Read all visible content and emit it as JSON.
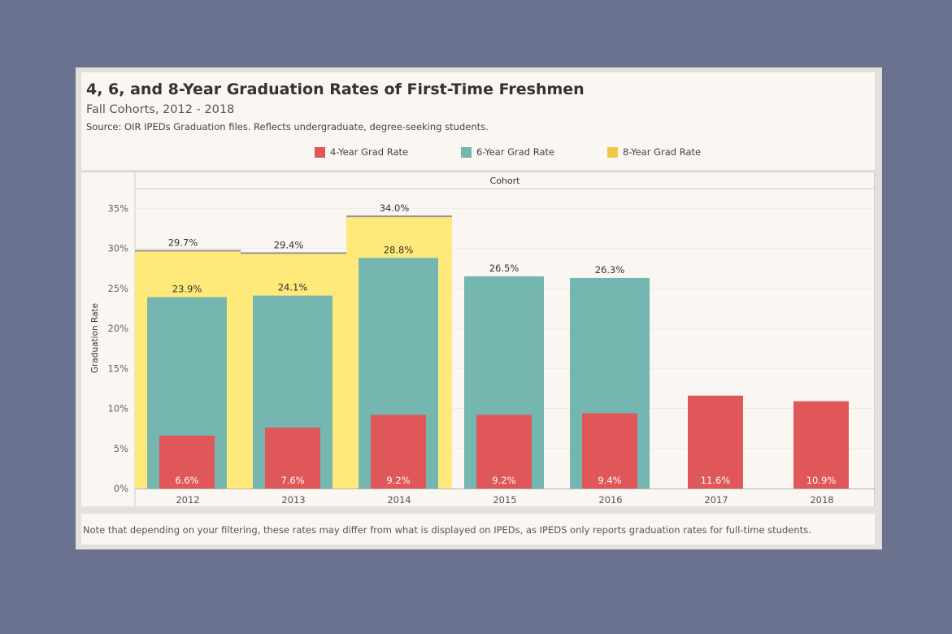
{
  "header": {
    "title": "4, 6, and 8-Year Graduation Rates of First-Time Freshmen",
    "subtitle": "Fall Cohorts, 2012 - 2018",
    "source": "Source: OIR IPEDs Graduation files. Reflects undergraduate, degree-seeking students."
  },
  "legend": [
    {
      "label": "4-Year Grad Rate",
      "color": "#e05759"
    },
    {
      "label": "6-Year Grad Rate",
      "color": "#76b6b0"
    },
    {
      "label": "8-Year Grad Rate",
      "color": "#efc945"
    }
  ],
  "footer": {
    "note": "Note that depending on your filtering, these rates may differ from what is displayed on IPEDs, as IPEDS only reports graduation rates for full-time students."
  },
  "chart_data": {
    "type": "bar",
    "title": "4, 6, and 8-Year Graduation Rates of First-Time Freshmen",
    "subtitle": "Fall Cohorts, 2012 - 2018",
    "column_header": "Cohort",
    "ylabel": "Graduation Rate",
    "ylim": [
      0,
      36
    ],
    "yticks": [
      "0%",
      "5%",
      "10%",
      "15%",
      "20%",
      "25%",
      "30%",
      "35%"
    ],
    "categories": [
      "2012",
      "2013",
      "2014",
      "2015",
      "2016",
      "2017",
      "2018"
    ],
    "series": [
      {
        "name": "8-Year Grad Rate",
        "color": "#ffe97a",
        "line_color": "#9a9490",
        "values": [
          29.7,
          29.4,
          34.0,
          null,
          null,
          null,
          null
        ],
        "labels": [
          "29.7%",
          "29.4%",
          "34.0%",
          "",
          "",
          "",
          ""
        ]
      },
      {
        "name": "6-Year Grad Rate",
        "color": "#76b6b0",
        "values": [
          23.9,
          24.1,
          28.8,
          26.5,
          26.3,
          null,
          null
        ],
        "labels": [
          "23.9%",
          "24.1%",
          "28.8%",
          "26.5%",
          "26.3%",
          "",
          ""
        ]
      },
      {
        "name": "4-Year Grad Rate",
        "color": "#e05759",
        "values": [
          6.6,
          7.6,
          9.2,
          9.2,
          9.4,
          11.6,
          10.9
        ],
        "labels": [
          "6.6%",
          "7.6%",
          "9.2%",
          "9.2%",
          "9.4%",
          "11.6%",
          "10.9%"
        ]
      }
    ],
    "grid": true,
    "legend_position": "top"
  }
}
